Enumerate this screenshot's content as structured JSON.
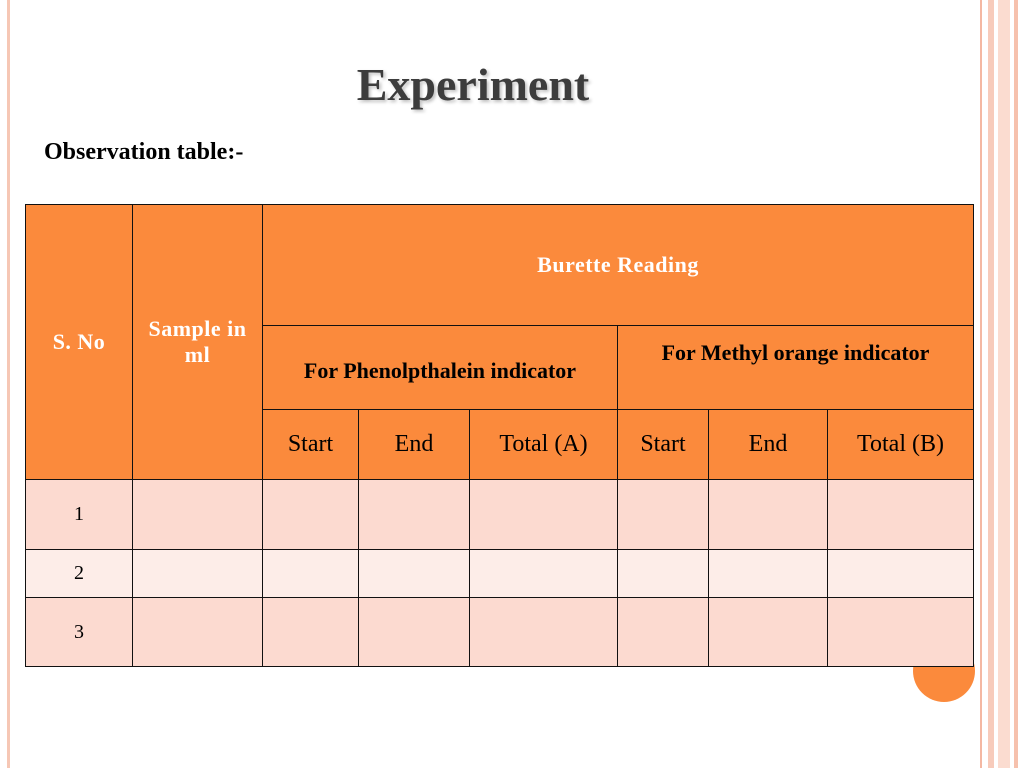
{
  "slide": {
    "title": "Experiment",
    "subtitle": "Observation table:-"
  },
  "table": {
    "header": {
      "sno": "S. No",
      "sample": "Sample in ml",
      "burette_reading": "Burette Reading",
      "phenolphthalein": "For Phenolpthalein indicator",
      "methyl_orange": "For Methyl orange indicator",
      "columns": [
        "Start",
        "End",
        "Total (A)",
        "Start",
        "End",
        "Total (B)"
      ]
    },
    "rows": [
      {
        "sno": "1"
      },
      {
        "sno": "2"
      },
      {
        "sno": "3"
      }
    ]
  },
  "colors": {
    "header_fill": "#fb8a3c",
    "row_odd_fill": "#fcdad0",
    "row_even_fill": "#fdede8",
    "accent_circle": "#fb8a3c"
  }
}
